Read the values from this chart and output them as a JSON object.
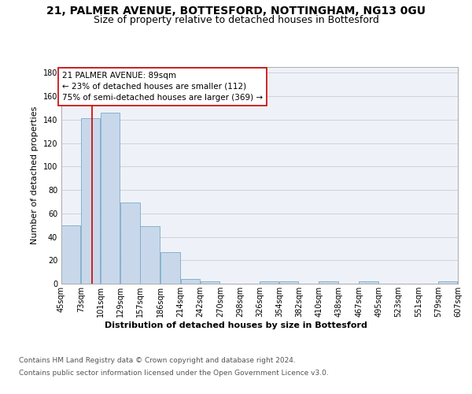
{
  "title_line1": "21, PALMER AVENUE, BOTTESFORD, NOTTINGHAM, NG13 0GU",
  "title_line2": "Size of property relative to detached houses in Bottesford",
  "xlabel": "Distribution of detached houses by size in Bottesford",
  "ylabel": "Number of detached properties",
  "bar_color": "#c8d8ea",
  "bar_edge_color": "#7aaac8",
  "background_color": "#eef2f8",
  "grid_color": "#cccccc",
  "annotation_line1": "21 PALMER AVENUE: 89sqm",
  "annotation_line2": "← 23% of detached houses are smaller (112)",
  "annotation_line3": "75% of semi-detached houses are larger (369) →",
  "vline_x": 89,
  "vline_color": "#cc0000",
  "bins": [
    45,
    73,
    101,
    129,
    157,
    186,
    214,
    242,
    270,
    298,
    326,
    354,
    382,
    410,
    438,
    467,
    495,
    523,
    551,
    579,
    607
  ],
  "bin_labels": [
    "45sqm",
    "73sqm",
    "101sqm",
    "129sqm",
    "157sqm",
    "186sqm",
    "214sqm",
    "242sqm",
    "270sqm",
    "298sqm",
    "326sqm",
    "354sqm",
    "382sqm",
    "410sqm",
    "438sqm",
    "467sqm",
    "495sqm",
    "523sqm",
    "551sqm",
    "579sqm",
    "607sqm"
  ],
  "bar_heights": [
    50,
    141,
    146,
    69,
    49,
    27,
    4,
    2,
    0,
    0,
    2,
    2,
    0,
    2,
    0,
    2,
    0,
    0,
    0,
    2
  ],
  "ylim": [
    0,
    185
  ],
  "yticks": [
    0,
    20,
    40,
    60,
    80,
    100,
    120,
    140,
    160,
    180
  ],
  "footer_line1": "Contains HM Land Registry data © Crown copyright and database right 2024.",
  "footer_line2": "Contains public sector information licensed under the Open Government Licence v3.0.",
  "title_fontsize": 10,
  "subtitle_fontsize": 9,
  "axis_label_fontsize": 8,
  "tick_fontsize": 7,
  "annotation_fontsize": 7.5,
  "footer_fontsize": 6.5
}
